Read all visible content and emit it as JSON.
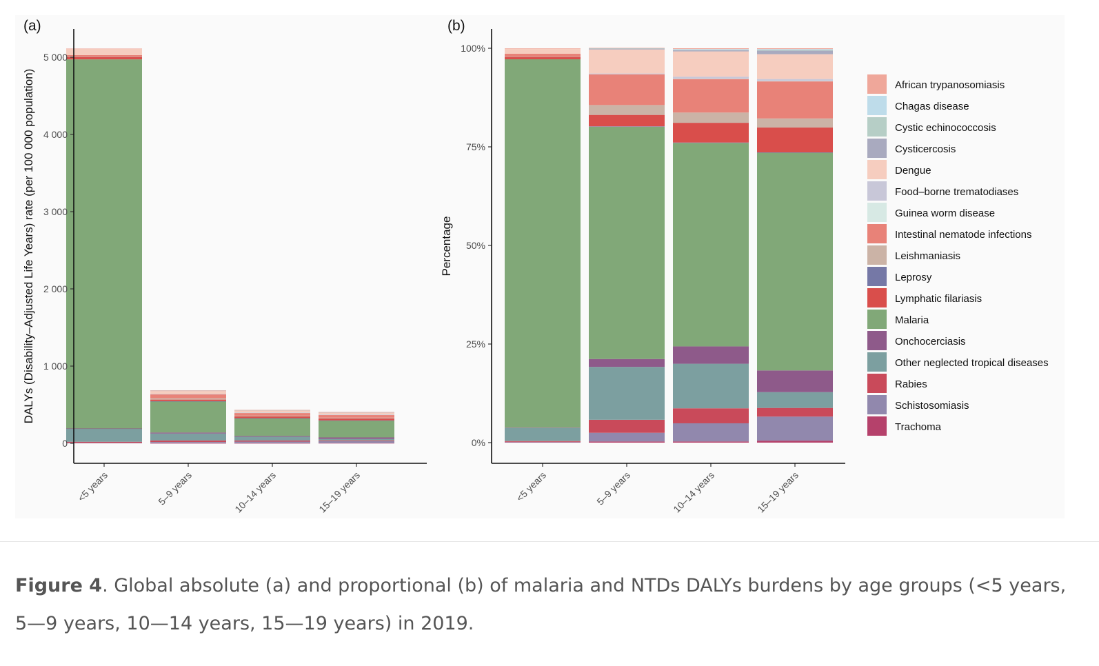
{
  "colors": {
    "African trypanosomiasis": "#EFA79A",
    "Chagas disease": "#BEDCEA",
    "Cystic echinococcosis": "#B6CEC6",
    "Cysticercosis": "#A9AABF",
    "Dengue": "#F6CDBF",
    "Food-borne trematodiases": "#C8C7D8",
    "Guinea worm disease": "#D7E9E4",
    "Intestinal nematode infections": "#E88278",
    "Leishmaniasis": "#CBB3A6",
    "Leprosy": "#7578A6",
    "Lymphatic filariasis": "#D94E4B",
    "Malaria": "#81A878",
    "Onchocerciasis": "#8E5A8A",
    "Other neglected tropical diseases": "#7C9FA0",
    "Rabies": "#C94A5A",
    "Schistosomiasis": "#9188AD",
    "Trachoma": "#B5416B"
  },
  "chart_data": [
    {
      "panel_label": "(a)",
      "type": "bar",
      "stacked": true,
      "categories": [
        "<5 years",
        "5–9 years",
        "10–14 years",
        "15–19 years"
      ],
      "ylabel": "DALYs (Disability–Adjusted Life Years) rate (per 100 000 population)",
      "ylim": [
        0,
        5110
      ],
      "yticks": [
        0,
        1000,
        2000,
        3000,
        4000,
        5000
      ],
      "ytick_labels": [
        "0",
        "1 000",
        "2 000",
        "3 000",
        "4 000",
        "5 000"
      ],
      "grid": false,
      "series": [
        {
          "name": "Trachoma",
          "values": [
            5,
            2,
            2,
            3
          ]
        },
        {
          "name": "Schistosomiasis",
          "values": [
            3,
            15,
            20,
            25
          ]
        },
        {
          "name": "Rabies",
          "values": [
            12,
            20,
            15,
            10
          ]
        },
        {
          "name": "Other neglected tropical diseases",
          "values": [
            170,
            90,
            48,
            18
          ]
        },
        {
          "name": "Onchocerciasis",
          "values": [
            2,
            13,
            10,
            20
          ]
        },
        {
          "name": "Malaria",
          "values": [
            4780,
            405,
            230,
            220
          ]
        },
        {
          "name": "Leprosy",
          "values": [
            0,
            1,
            1,
            1
          ]
        },
        {
          "name": "Lymphatic filariasis",
          "values": [
            35,
            20,
            22,
            25
          ]
        },
        {
          "name": "Leishmaniasis",
          "values": [
            5,
            17,
            10,
            10
          ]
        },
        {
          "name": "Intestinal nematode infections",
          "values": [
            15,
            54,
            38,
            38
          ]
        },
        {
          "name": "Guinea worm disease",
          "values": [
            0,
            0,
            1,
            1
          ]
        },
        {
          "name": "Food-borne trematodiases",
          "values": [
            0,
            1,
            3,
            3
          ]
        },
        {
          "name": "Dengue",
          "values": [
            80,
            43,
            27,
            25
          ]
        },
        {
          "name": "Cysticercosis",
          "values": [
            0,
            2,
            2,
            3
          ]
        },
        {
          "name": "Cystic echinococcosis",
          "values": [
            0,
            1,
            1,
            1
          ]
        },
        {
          "name": "Chagas disease",
          "values": [
            0,
            1,
            1,
            1
          ]
        },
        {
          "name": "African trypanosomiasis",
          "values": [
            5,
            1,
            1,
            1
          ]
        }
      ]
    },
    {
      "panel_label": "(b)",
      "type": "bar",
      "stacked": true,
      "percent": true,
      "categories": [
        "<5 years",
        "5–9 years",
        "10–14 years",
        "15–19 years"
      ],
      "ylabel": "Percentage",
      "ylim": [
        0,
        100
      ],
      "yticks": [
        0,
        25,
        50,
        75,
        100
      ],
      "ytick_labels": [
        "0%",
        "25%",
        "50%",
        "75%",
        "100%"
      ],
      "grid": false,
      "series": [
        {
          "name": "Trachoma",
          "values": [
            0.1,
            0.3,
            0.3,
            0.5
          ]
        },
        {
          "name": "Schistosomiasis",
          "values": [
            0.1,
            2.2,
            4.6,
            6.1
          ]
        },
        {
          "name": "Rabies",
          "values": [
            0.2,
            3.3,
            3.8,
            2.2
          ]
        },
        {
          "name": "Other neglected tropical diseases",
          "values": [
            3.3,
            13.4,
            11.3,
            4.0
          ]
        },
        {
          "name": "Onchocerciasis",
          "values": [
            0.1,
            2.0,
            4.4,
            5.5
          ]
        },
        {
          "name": "Malaria",
          "values": [
            93.4,
            58.9,
            51.6,
            55.2
          ]
        },
        {
          "name": "Leprosy",
          "values": [
            0,
            0.1,
            0.1,
            0.1
          ]
        },
        {
          "name": "Lymphatic filariasis",
          "values": [
            0.6,
            2.9,
            5.0,
            6.3
          ]
        },
        {
          "name": "Leishmaniasis",
          "values": [
            0.1,
            2.5,
            2.6,
            2.3
          ]
        },
        {
          "name": "Intestinal nematode infections",
          "values": [
            0.7,
            7.8,
            8.5,
            9.4
          ]
        },
        {
          "name": "Guinea worm disease",
          "values": [
            0,
            0,
            0.1,
            0.1
          ]
        },
        {
          "name": "Food-borne trematodiases",
          "values": [
            0,
            0.2,
            0.5,
            0.5
          ]
        },
        {
          "name": "Dengue",
          "values": [
            1.3,
            6.1,
            6.4,
            6.3
          ]
        },
        {
          "name": "Cysticercosis",
          "values": [
            0,
            0.2,
            0.3,
            0.9
          ]
        },
        {
          "name": "Cystic echinococcosis",
          "values": [
            0,
            0.1,
            0.1,
            0.2
          ]
        },
        {
          "name": "Chagas disease",
          "values": [
            0,
            0,
            0.2,
            0.2
          ]
        },
        {
          "name": "African trypanosomiasis",
          "values": [
            0.1,
            0.1,
            0.2,
            0.2
          ]
        }
      ]
    }
  ],
  "legend": {
    "position": "right",
    "items": [
      "African trypanosomiasis",
      "Chagas disease",
      "Cystic echinococcosis",
      "Cysticercosis",
      "Dengue",
      "Food–borne trematodiases",
      "Guinea worm disease",
      "Intestinal nematode infections",
      "Leishmaniasis",
      "Leprosy",
      "Lymphatic filariasis",
      "Malaria",
      "Onchocerciasis",
      "Other neglected tropical diseases",
      "Rabies",
      "Schistosomiasis",
      "Trachoma"
    ]
  },
  "caption": {
    "label": "Figure 4",
    "text": ". Global absolute (a) and proportional (b) of malaria and NTDs DALYs burdens by age groups (<5 years, 5—9 years, 10—14 years, 15—19 years) in 2019."
  }
}
